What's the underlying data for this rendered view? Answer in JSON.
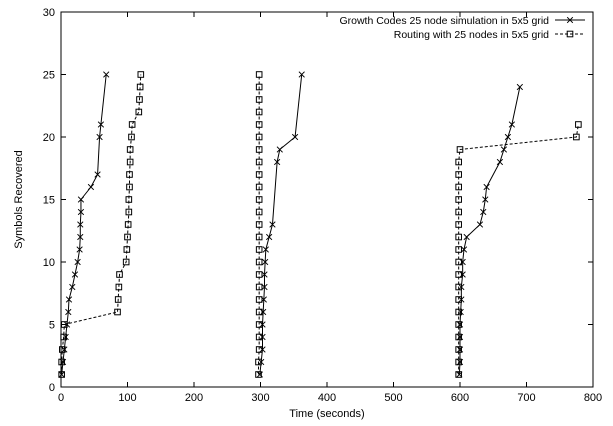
{
  "chart_data": {
    "type": "line",
    "xlabel": "Time (seconds)",
    "ylabel": "Symbols Recovered",
    "xlim": [
      0,
      800
    ],
    "ylim": [
      0,
      30
    ],
    "xticks": [
      0,
      100,
      200,
      300,
      400,
      500,
      600,
      700,
      800
    ],
    "yticks": [
      0,
      5,
      10,
      15,
      20,
      25,
      30
    ],
    "grid": false,
    "legend_position": "top-right",
    "series": [
      {
        "name": "Growth Codes 25 node simulation in 5x5 grid",
        "line_style": "solid",
        "marker": "x",
        "points": [
          [
            1,
            1
          ],
          [
            3,
            2
          ],
          [
            5,
            3
          ],
          [
            7,
            4
          ],
          [
            9,
            5
          ],
          [
            11,
            6
          ],
          [
            12,
            7
          ],
          [
            17,
            8
          ],
          [
            21,
            9
          ],
          [
            25,
            10
          ],
          [
            28,
            11
          ],
          [
            29,
            12
          ],
          [
            29,
            13
          ],
          [
            30,
            14
          ],
          [
            30,
            15
          ],
          [
            45,
            16
          ],
          [
            55,
            17
          ],
          [
            58,
            20
          ],
          [
            60,
            21
          ],
          [
            68,
            25
          ],
          [
            299,
            1
          ],
          [
            301,
            2
          ],
          [
            303,
            3
          ],
          [
            303,
            4
          ],
          [
            303,
            5
          ],
          [
            304,
            6
          ],
          [
            305,
            7
          ],
          [
            306,
            8
          ],
          [
            306,
            9
          ],
          [
            307,
            10
          ],
          [
            308,
            11
          ],
          [
            313,
            12
          ],
          [
            318,
            13
          ],
          [
            325,
            18
          ],
          [
            329,
            19
          ],
          [
            352,
            20
          ],
          [
            362,
            25
          ],
          [
            599,
            1
          ],
          [
            600,
            2
          ],
          [
            600,
            3
          ],
          [
            600,
            4
          ],
          [
            600,
            5
          ],
          [
            601,
            6
          ],
          [
            602,
            7
          ],
          [
            602,
            8
          ],
          [
            604,
            9
          ],
          [
            604,
            10
          ],
          [
            606,
            11
          ],
          [
            610,
            12
          ],
          [
            630,
            13
          ],
          [
            635,
            14
          ],
          [
            638,
            15
          ],
          [
            640,
            16
          ],
          [
            660,
            18
          ],
          [
            666,
            19
          ],
          [
            672,
            20
          ],
          [
            678,
            21
          ],
          [
            690,
            24
          ]
        ]
      },
      {
        "name": "Routing with 25 nodes in 5x5 grid",
        "line_style": "dashed",
        "marker": "square",
        "points": [
          [
            1,
            1
          ],
          [
            1,
            2
          ],
          [
            2,
            3
          ],
          [
            4,
            4
          ],
          [
            5,
            5
          ],
          [
            85,
            6
          ],
          [
            86,
            7
          ],
          [
            87,
            8
          ],
          [
            88,
            9
          ],
          [
            98,
            10
          ],
          [
            99,
            11
          ],
          [
            100,
            12
          ],
          [
            101,
            13
          ],
          [
            102,
            14
          ],
          [
            102,
            15
          ],
          [
            103,
            16
          ],
          [
            103,
            17
          ],
          [
            104,
            18
          ],
          [
            104,
            19
          ],
          [
            106,
            20
          ],
          [
            107,
            21
          ],
          [
            117,
            22
          ],
          [
            118,
            23
          ],
          [
            119,
            24
          ],
          [
            120,
            25
          ],
          [
            297,
            1
          ],
          [
            297,
            2
          ],
          [
            298,
            3
          ],
          [
            298,
            4
          ],
          [
            298,
            5
          ],
          [
            298,
            6
          ],
          [
            298,
            7
          ],
          [
            298,
            8
          ],
          [
            298,
            9
          ],
          [
            298,
            10
          ],
          [
            298,
            11
          ],
          [
            298,
            12
          ],
          [
            298,
            13
          ],
          [
            298,
            14
          ],
          [
            298,
            15
          ],
          [
            298,
            16
          ],
          [
            298,
            17
          ],
          [
            298,
            18
          ],
          [
            298,
            19
          ],
          [
            298,
            20
          ],
          [
            298,
            21
          ],
          [
            298,
            22
          ],
          [
            298,
            23
          ],
          [
            298,
            24
          ],
          [
            298,
            25
          ],
          [
            598,
            1
          ],
          [
            598,
            2
          ],
          [
            598,
            3
          ],
          [
            598,
            4
          ],
          [
            598,
            5
          ],
          [
            598,
            6
          ],
          [
            598,
            7
          ],
          [
            598,
            8
          ],
          [
            598,
            9
          ],
          [
            598,
            10
          ],
          [
            598,
            11
          ],
          [
            598,
            12
          ],
          [
            598,
            13
          ],
          [
            598,
            14
          ],
          [
            598,
            15
          ],
          [
            598,
            16
          ],
          [
            598,
            17
          ],
          [
            598,
            18
          ],
          [
            600,
            19
          ],
          [
            775,
            20
          ],
          [
            778,
            21
          ]
        ]
      }
    ]
  }
}
